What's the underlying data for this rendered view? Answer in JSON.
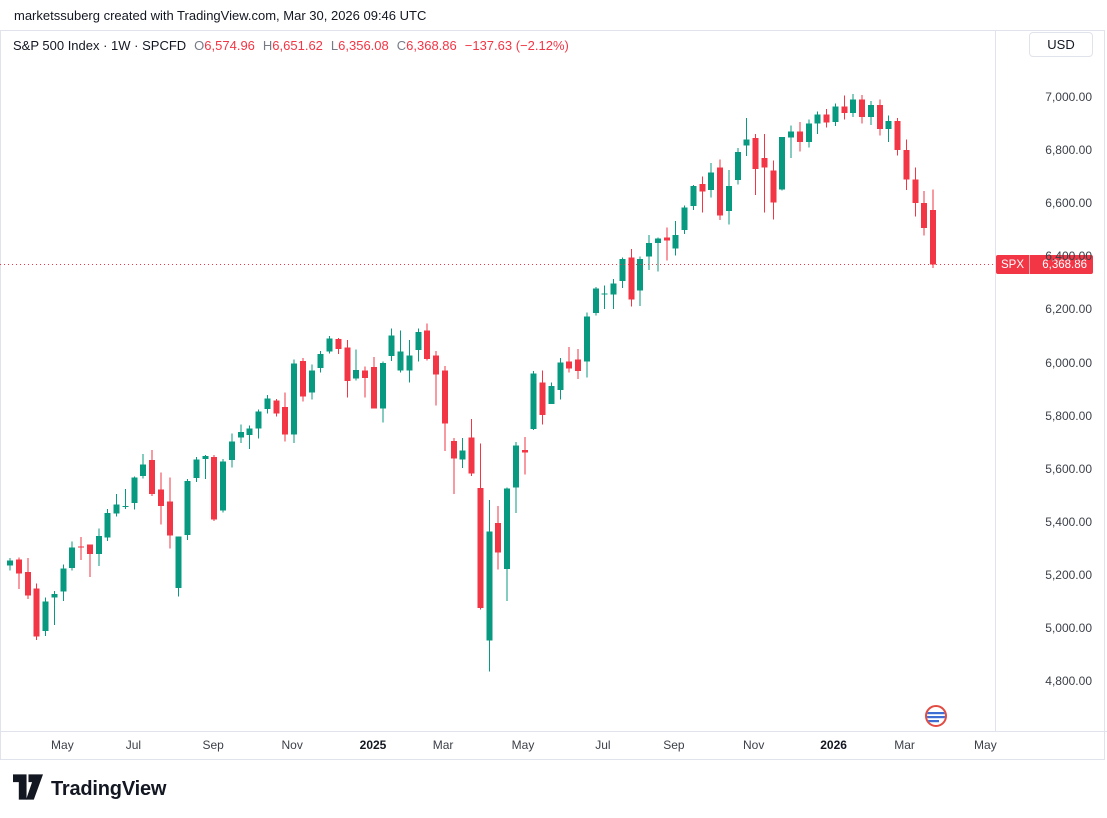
{
  "attribution": "marketssuberg created with TradingView.com, Mar 30, 2026 09:46 UTC",
  "legend": {
    "title_line": "S&P 500 Index · 1W · SPCFD",
    "o_label": "O",
    "o_value": "6,574.96",
    "h_label": "H",
    "h_value": "6,651.62",
    "l_label": "L",
    "l_value": "6,356.08",
    "c_label": "C",
    "c_value": "6,368.86",
    "change": "−137.63 (−2.12%)"
  },
  "price_scale": {
    "currency_button": "USD",
    "badge_symbol": "SPX",
    "badge_value": "6,368.86"
  },
  "footer": {
    "brand": "TradingView"
  },
  "colors": {
    "up": "#089981",
    "down": "#f23645",
    "price_line": "#f23645",
    "badge_bg": "#f23645",
    "text": "#131722",
    "muted_text": "#787b86",
    "axis_text": "#3c4049",
    "border": "#e0e3eb"
  },
  "chart_data": {
    "type": "candlestick",
    "symbol": "SPX",
    "title": "S&P 500 Index",
    "interval": "1W",
    "currency": "USD",
    "last_close": 6368.86,
    "grid": "off",
    "y_axis_range": [
      4610,
      7250
    ],
    "y_ticks": [
      {
        "value": 7000,
        "label": "7,000.00"
      },
      {
        "value": 6800,
        "label": "6,800.00"
      },
      {
        "value": 6600,
        "label": "6,600.00"
      },
      {
        "value": 6400,
        "label": "6,400.00"
      },
      {
        "value": 6200,
        "label": "6,200.00"
      },
      {
        "value": 6000,
        "label": "6,000.00"
      },
      {
        "value": 5800,
        "label": "5,800.00"
      },
      {
        "value": 5600,
        "label": "5,600.00"
      },
      {
        "value": 5400,
        "label": "5,400.00"
      },
      {
        "value": 5200,
        "label": "5,200.00"
      },
      {
        "value": 5000,
        "label": "5,000.00"
      },
      {
        "value": 4800,
        "label": "4,800.00"
      }
    ],
    "x_labels": [
      {
        "text": "May",
        "week": 5.9,
        "bold": false
      },
      {
        "text": "Jul",
        "week": 13.9,
        "bold": false
      },
      {
        "text": "Sep",
        "week": 22.9,
        "bold": false
      },
      {
        "text": "Nov",
        "week": 31.8,
        "bold": false
      },
      {
        "text": "2025",
        "week": 40.9,
        "bold": true
      },
      {
        "text": "Mar",
        "week": 48.8,
        "bold": false
      },
      {
        "text": "May",
        "week": 57.8,
        "bold": false
      },
      {
        "text": "Jul",
        "week": 66.8,
        "bold": false
      },
      {
        "text": "Sep",
        "week": 74.8,
        "bold": false
      },
      {
        "text": "Nov",
        "week": 83.8,
        "bold": false
      },
      {
        "text": "2026",
        "week": 92.8,
        "bold": true
      },
      {
        "text": "Mar",
        "week": 100.8,
        "bold": false
      },
      {
        "text": "May",
        "week": 109.9,
        "bold": false
      }
    ],
    "candles_format": [
      "open",
      "high",
      "low",
      "close"
    ],
    "candles": [
      [
        5235,
        5264,
        5216,
        5254
      ],
      [
        5258,
        5265,
        5146,
        5204
      ],
      [
        5211,
        5263,
        5108,
        5123
      ],
      [
        5149,
        5168,
        4954,
        4967
      ],
      [
        4988,
        5114,
        4970,
        5100
      ],
      [
        5114,
        5139,
        5011,
        5128
      ],
      [
        5138,
        5239,
        5101,
        5223
      ],
      [
        5225,
        5325,
        5217,
        5303
      ],
      [
        5306,
        5342,
        5256,
        5305
      ],
      [
        5315,
        5315,
        5192,
        5278
      ],
      [
        5278,
        5375,
        5234,
        5347
      ],
      [
        5341,
        5447,
        5327,
        5432
      ],
      [
        5431,
        5505,
        5420,
        5465
      ],
      [
        5459,
        5523,
        5447,
        5460
      ],
      [
        5471,
        5570,
        5446,
        5567
      ],
      [
        5572,
        5656,
        5562,
        5615
      ],
      [
        5632,
        5670,
        5497,
        5505
      ],
      [
        5522,
        5585,
        5390,
        5459
      ],
      [
        5476,
        5566,
        5300,
        5347
      ],
      [
        5151,
        5335,
        5119,
        5344
      ],
      [
        5350,
        5561,
        5331,
        5554
      ],
      [
        5564,
        5643,
        5550,
        5635
      ],
      [
        5637,
        5652,
        5560,
        5648
      ],
      [
        5644,
        5651,
        5402,
        5408
      ],
      [
        5442,
        5636,
        5434,
        5626
      ],
      [
        5632,
        5733,
        5604,
        5703
      ],
      [
        5718,
        5767,
        5696,
        5738
      ],
      [
        5726,
        5763,
        5674,
        5751
      ],
      [
        5751,
        5822,
        5714,
        5815
      ],
      [
        5824,
        5878,
        5808,
        5865
      ],
      [
        5857,
        5863,
        5797,
        5808
      ],
      [
        5833,
        5887,
        5702,
        5729
      ],
      [
        5729,
        6012,
        5697,
        5996
      ],
      [
        6006,
        6017,
        5853,
        5871
      ],
      [
        5886,
        5993,
        5860,
        5969
      ],
      [
        5980,
        6044,
        5962,
        6032
      ],
      [
        6041,
        6100,
        6034,
        6090
      ],
      [
        6089,
        6092,
        6032,
        6051
      ],
      [
        6056,
        6085,
        5868,
        5931
      ],
      [
        5940,
        6049,
        5932,
        5971
      ],
      [
        5970,
        5985,
        5868,
        5942
      ],
      [
        5982,
        6021,
        5829,
        5827
      ],
      [
        5826,
        6003,
        5773,
        5997
      ],
      [
        6024,
        6128,
        6006,
        6101
      ],
      [
        5969,
        6121,
        5962,
        6041
      ],
      [
        5970,
        6084,
        5924,
        6026
      ],
      [
        6046,
        6127,
        6003,
        6115
      ],
      [
        6121,
        6147,
        6008,
        6013
      ],
      [
        6026,
        6043,
        5837,
        5955
      ],
      [
        5969,
        5986,
        5666,
        5770
      ],
      [
        5705,
        5715,
        5505,
        5639
      ],
      [
        5634,
        5715,
        5603,
        5668
      ],
      [
        5718,
        5787,
        5572,
        5581
      ],
      [
        5527,
        5695,
        5069,
        5074
      ],
      [
        4953,
        5481,
        4835,
        5363
      ],
      [
        5395,
        5459,
        5220,
        5283
      ],
      [
        5222,
        5528,
        5101,
        5525
      ],
      [
        5529,
        5700,
        5433,
        5687
      ],
      [
        5670,
        5720,
        5578,
        5660
      ],
      [
        5749,
        5968,
        5746,
        5958
      ],
      [
        5925,
        5969,
        5767,
        5803
      ],
      [
        5843,
        5925,
        5843,
        5912
      ],
      [
        5896,
        6016,
        5861,
        6000
      ],
      [
        6004,
        6059,
        5963,
        5977
      ],
      [
        6011,
        6050,
        5938,
        5968
      ],
      [
        6003,
        6188,
        5943,
        6173
      ],
      [
        6187,
        6284,
        6177,
        6279
      ],
      [
        6258,
        6290,
        6201,
        6260
      ],
      [
        6255,
        6315,
        6201,
        6297
      ],
      [
        6307,
        6395,
        6281,
        6389
      ],
      [
        6395,
        6428,
        6211,
        6238
      ],
      [
        6272,
        6400,
        6213,
        6389
      ],
      [
        6399,
        6481,
        6349,
        6450
      ],
      [
        6450,
        6470,
        6342,
        6467
      ],
      [
        6470,
        6509,
        6384,
        6460
      ],
      [
        6429,
        6533,
        6402,
        6481
      ],
      [
        6499,
        6592,
        6483,
        6584
      ],
      [
        6590,
        6669,
        6574,
        6664
      ],
      [
        6672,
        6700,
        6565,
        6644
      ],
      [
        6650,
        6751,
        6621,
        6716
      ],
      [
        6735,
        6765,
        6536,
        6553
      ],
      [
        6570,
        6725,
        6520,
        6664
      ],
      [
        6688,
        6807,
        6670,
        6792
      ],
      [
        6818,
        6920,
        6777,
        6840
      ],
      [
        6846,
        6861,
        6631,
        6729
      ],
      [
        6771,
        6860,
        6564,
        6734
      ],
      [
        6724,
        6760,
        6538,
        6603
      ],
      [
        6652,
        6850,
        6647,
        6849
      ],
      [
        6847,
        6893,
        6770,
        6870
      ],
      [
        6870,
        6905,
        6795,
        6830
      ],
      [
        6830,
        6915,
        6810,
        6900
      ],
      [
        6900,
        6945,
        6860,
        6935
      ],
      [
        6935,
        6955,
        6885,
        6905
      ],
      [
        6905,
        6975,
        6890,
        6965
      ],
      [
        6965,
        7005,
        6915,
        6940
      ],
      [
        6940,
        7012,
        6925,
        6990
      ],
      [
        6990,
        7008,
        6900,
        6925
      ],
      [
        6925,
        6985,
        6895,
        6970
      ],
      [
        6970,
        6990,
        6855,
        6880
      ],
      [
        6880,
        6930,
        6830,
        6910
      ],
      [
        6910,
        6920,
        6780,
        6800
      ],
      [
        6800,
        6840,
        6650,
        6690
      ],
      [
        6690,
        6735,
        6550,
        6600
      ],
      [
        6600,
        6645,
        6478,
        6506
      ],
      [
        6574.96,
        6651.62,
        6356.08,
        6368.86
      ]
    ]
  }
}
